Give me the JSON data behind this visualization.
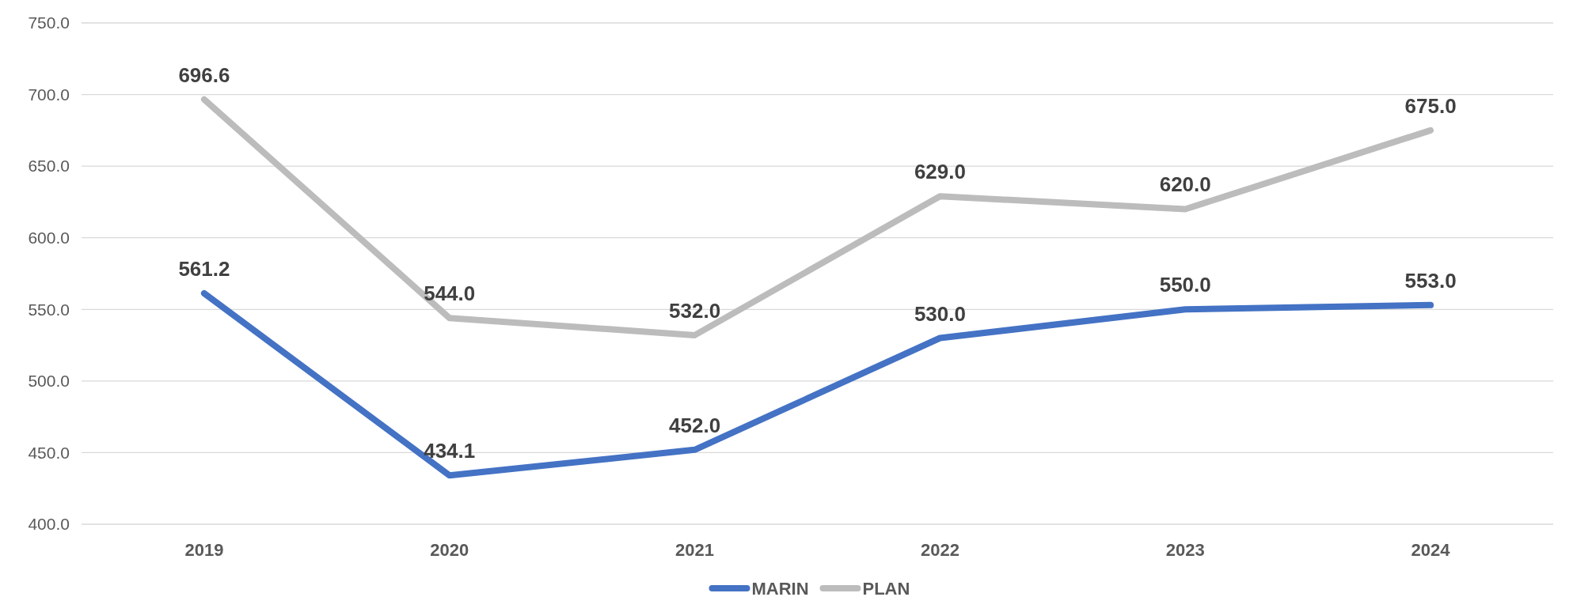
{
  "chart_data": {
    "type": "line",
    "categories": [
      "2019",
      "2020",
      "2021",
      "2022",
      "2023",
      "2024"
    ],
    "series": [
      {
        "name": "MARIN",
        "color": "#4472c4",
        "values": [
          561.2,
          434.1,
          452.0,
          530.0,
          550.0,
          553.0
        ],
        "value_labels": [
          "561.2",
          "434.1",
          "452.0",
          "530.0",
          "550.0",
          "553.0"
        ]
      },
      {
        "name": "PLAN",
        "color": "#bcbcbc",
        "values": [
          696.6,
          544.0,
          532.0,
          629.0,
          620.0,
          675.0
        ],
        "value_labels": [
          "696.6",
          "544.0",
          "532.0",
          "629.0",
          "620.0",
          "675.0"
        ]
      }
    ],
    "ylim": [
      400,
      750
    ],
    "yticks": [
      {
        "value": 400,
        "label": "400.0"
      },
      {
        "value": 450,
        "label": "450.0"
      },
      {
        "value": 500,
        "label": "500.0"
      },
      {
        "value": 550,
        "label": "550.0"
      },
      {
        "value": 600,
        "label": "600.0"
      },
      {
        "value": 650,
        "label": "650.0"
      },
      {
        "value": 700,
        "label": "700.0"
      },
      {
        "value": 750,
        "label": "750.0"
      }
    ],
    "grid": "y",
    "legend": "bottom",
    "marker": "none",
    "line_style": "solid"
  }
}
